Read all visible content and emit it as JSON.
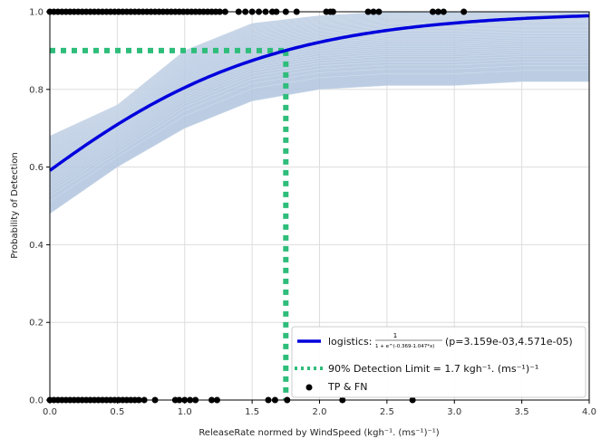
{
  "chart_data": {
    "type": "line",
    "title": "",
    "xlabel": "ReleaseRate normed by WindSpeed (kgh⁻¹. (ms⁻¹)⁻¹)",
    "ylabel": "Probability of Detection",
    "xlim": [
      0,
      4
    ],
    "ylim": [
      0,
      1
    ],
    "xticks": [
      "0.0",
      "0.5",
      "1.0",
      "1.5",
      "2.0",
      "2.5",
      "3.0",
      "3.5",
      "4.0"
    ],
    "yticks": [
      "0.0",
      "0.2",
      "0.4",
      "0.6",
      "0.8",
      "1.0"
    ],
    "grid": true,
    "legend_position": "bottom-right",
    "colors": {
      "fit": "#0000dd",
      "bootstrap": "#b0c4de",
      "limit": "#2ebd7a",
      "points": "#000000"
    },
    "fit": {
      "intercept": 0.369,
      "slope": 1.047
    },
    "bootstrap_band": {
      "x": [
        0,
        0.5,
        1,
        1.5,
        2,
        2.5,
        3,
        3.5,
        4
      ],
      "lower": [
        0.48,
        0.6,
        0.7,
        0.77,
        0.8,
        0.81,
        0.81,
        0.82,
        0.82
      ],
      "upper": [
        0.68,
        0.76,
        0.9,
        0.97,
        0.99,
        1.0,
        1.0,
        1.0,
        1.0
      ]
    },
    "detection_limit": {
      "x": 1.75,
      "y": 0.9
    },
    "points_y1": [
      0,
      0.03,
      0.06,
      0.09,
      0.12,
      0.15,
      0.18,
      0.21,
      0.24,
      0.27,
      0.3,
      0.33,
      0.36,
      0.39,
      0.42,
      0.45,
      0.48,
      0.51,
      0.54,
      0.57,
      0.6,
      0.63,
      0.66,
      0.69,
      0.72,
      0.75,
      0.78,
      0.81,
      0.84,
      0.87,
      0.9,
      0.93,
      0.96,
      0.99,
      1.02,
      1.05,
      1.08,
      1.11,
      1.14,
      1.17,
      1.2,
      1.23,
      1.26,
      1.3,
      1.4,
      1.45,
      1.5,
      1.55,
      1.6,
      1.65,
      1.68,
      1.75,
      1.83,
      2.05,
      2.08,
      2.1,
      2.36,
      2.4,
      2.44,
      2.84,
      2.88,
      2.92,
      3.07
    ],
    "points_y0": [
      0,
      0.03,
      0.06,
      0.09,
      0.12,
      0.15,
      0.18,
      0.21,
      0.24,
      0.27,
      0.3,
      0.33,
      0.36,
      0.39,
      0.42,
      0.45,
      0.48,
      0.51,
      0.54,
      0.57,
      0.6,
      0.63,
      0.66,
      0.7,
      0.78,
      0.93,
      0.96,
      1.0,
      1.04,
      1.08,
      1.2,
      1.24,
      1.62,
      1.67,
      1.76,
      2.17,
      2.69
    ],
    "legend": {
      "fit_label": "logistics:",
      "fit_formula_num": "1",
      "fit_formula_den": "1 + e^(-0.369-1.047*x)",
      "fit_params": "(p=3.159e-03,4.571e-05)",
      "limit_label": "90% Detection Limit =  1.7 kgh⁻¹. (ms⁻¹)⁻¹",
      "points_label": "TP & FN"
    }
  }
}
